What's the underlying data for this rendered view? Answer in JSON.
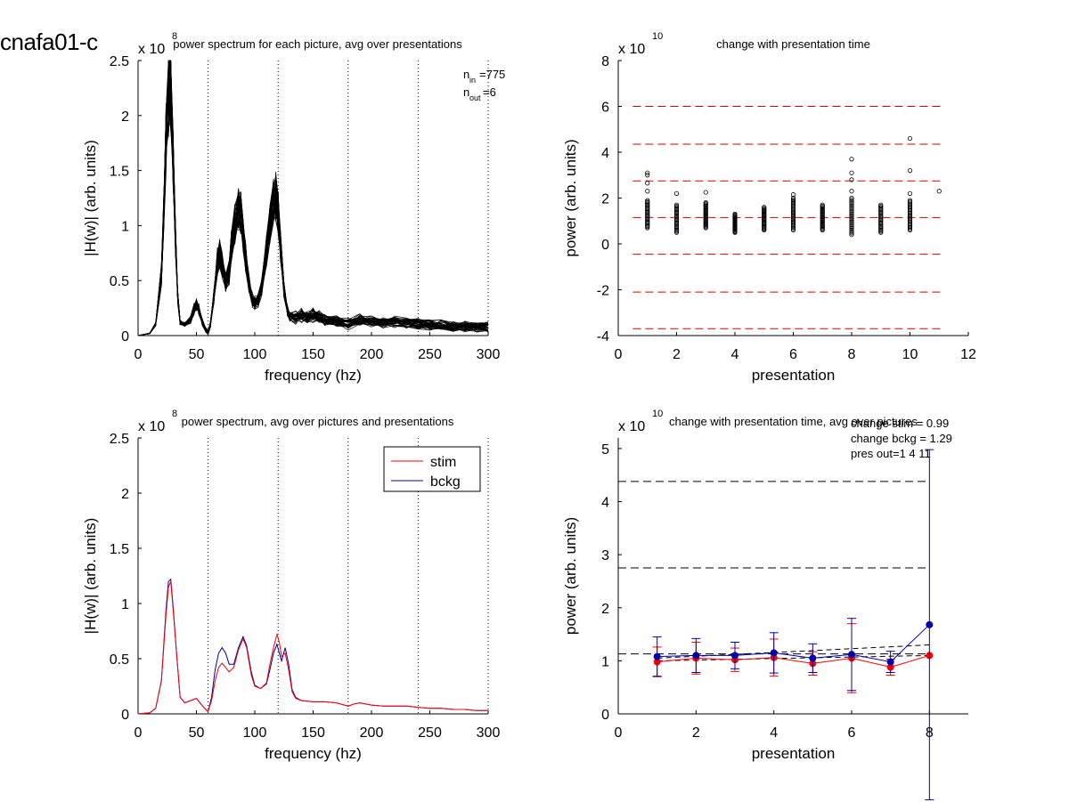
{
  "figure_label": "cnafa01-c",
  "colors": {
    "stim": "#ff0000",
    "bckg": "#0000aa",
    "curves": "#000000",
    "threshold": "#d00000"
  },
  "chart_data": [
    {
      "id": "p1",
      "type": "line",
      "title": "power spectrum for each picture, avg over presentations",
      "xlabel": "frequency (hz)",
      "ylabel": "|H(w)| (arb. units)",
      "exponent": "x 10",
      "exponent_power": "8",
      "xlim": [
        0,
        300
      ],
      "ylim": [
        0,
        2.5
      ],
      "xticks": [
        0,
        50,
        100,
        150,
        200,
        250,
        300
      ],
      "yticks": [
        0,
        0.5,
        1,
        1.5,
        2,
        2.5
      ],
      "vlines": [
        60,
        120,
        180,
        240,
        300
      ],
      "annotations": [
        {
          "base": "n",
          "sub": "in",
          "text": "=775"
        },
        {
          "base": "n",
          "sub": "out",
          "text": "=6"
        }
      ],
      "curve_count": 40,
      "template_curve": {
        "x": [
          0,
          5,
          10,
          15,
          20,
          22,
          24,
          26,
          27,
          28,
          30,
          32,
          34,
          36,
          40,
          45,
          48,
          50,
          52,
          55,
          58,
          60,
          62,
          65,
          68,
          70,
          72,
          75,
          78,
          80,
          83,
          86,
          88,
          90,
          92,
          95,
          98,
          100,
          103,
          106,
          110,
          113,
          116,
          118,
          120,
          122,
          125,
          128,
          130,
          135,
          140,
          145,
          150,
          155,
          160,
          170,
          180,
          190,
          200,
          210,
          220,
          230,
          240,
          250,
          260,
          270,
          280,
          290,
          300
        ],
        "y": [
          0,
          0.01,
          0.02,
          0.1,
          0.55,
          1.1,
          1.8,
          2.2,
          2.35,
          2.25,
          1.6,
          0.9,
          0.35,
          0.12,
          0.1,
          0.12,
          0.22,
          0.27,
          0.22,
          0.1,
          0.03,
          0.01,
          0.08,
          0.35,
          0.65,
          0.72,
          0.62,
          0.48,
          0.55,
          0.8,
          1.0,
          1.12,
          1.1,
          0.9,
          0.7,
          0.45,
          0.3,
          0.28,
          0.3,
          0.42,
          0.75,
          1.0,
          1.2,
          1.25,
          1.1,
          0.8,
          0.4,
          0.2,
          0.15,
          0.12,
          0.14,
          0.13,
          0.14,
          0.12,
          0.1,
          0.09,
          0.06,
          0.1,
          0.09,
          0.07,
          0.08,
          0.07,
          0.06,
          0.05,
          0.05,
          0.04,
          0.04,
          0.03,
          0.03
        ]
      }
    },
    {
      "id": "p2",
      "type": "scatter",
      "title": "change with presentation time",
      "xlabel": "presentation",
      "ylabel": "power (arb. units)",
      "exponent": "x 10",
      "exponent_power": "10",
      "xlim": [
        0,
        12
      ],
      "ylim": [
        -4,
        8
      ],
      "xticks": [
        0,
        2,
        4,
        6,
        8,
        10,
        12
      ],
      "yticks": [
        -4,
        -2,
        0,
        2,
        4,
        6,
        8
      ],
      "hlines": [
        6.0,
        4.35,
        2.75,
        1.15,
        -0.45,
        -2.1,
        -3.7
      ],
      "columns": [
        {
          "x": 1,
          "min": 0.7,
          "max": 1.9,
          "outliers": [
            2.3,
            2.65,
            3.0,
            3.1
          ]
        },
        {
          "x": 2,
          "min": 0.5,
          "max": 1.7,
          "outliers": [
            2.2
          ]
        },
        {
          "x": 3,
          "min": 0.7,
          "max": 1.8,
          "outliers": [
            2.25
          ]
        },
        {
          "x": 4,
          "min": 0.5,
          "max": 1.3,
          "outliers": []
        },
        {
          "x": 5,
          "min": 0.6,
          "max": 1.6,
          "outliers": []
        },
        {
          "x": 6,
          "min": 0.6,
          "max": 2.0,
          "outliers": [
            2.15
          ]
        },
        {
          "x": 7,
          "min": 0.6,
          "max": 1.7,
          "outliers": []
        },
        {
          "x": 8,
          "min": 0.4,
          "max": 2.0,
          "outliers": [
            2.3,
            2.8,
            3.1,
            3.7
          ]
        },
        {
          "x": 9,
          "min": 0.5,
          "max": 1.7,
          "outliers": []
        },
        {
          "x": 10,
          "min": 0.6,
          "max": 1.9,
          "outliers": [
            2.2,
            3.2,
            4.6
          ]
        },
        {
          "x": 11,
          "min": 2.3,
          "max": 2.3,
          "outliers": []
        }
      ]
    },
    {
      "id": "p3",
      "type": "line",
      "title": "power spectrum, avg over pictures and presentations",
      "xlabel": "frequency (hz)",
      "ylabel": "|H(w)| (arb. units)",
      "exponent": "x 10",
      "exponent_power": "8",
      "xlim": [
        0,
        300
      ],
      "ylim": [
        0,
        2.5
      ],
      "xticks": [
        0,
        50,
        100,
        150,
        200,
        250,
        300
      ],
      "yticks": [
        0,
        0.5,
        1,
        1.5,
        2,
        2.5
      ],
      "vlines": [
        60,
        120,
        180,
        240,
        300
      ],
      "legend": {
        "placement": "top-right",
        "entries": [
          "stim",
          "bckg"
        ]
      },
      "series": [
        {
          "name": "stim",
          "x": [
            0,
            10,
            15,
            20,
            24,
            26,
            28,
            30,
            33,
            36,
            40,
            45,
            50,
            53,
            57,
            60,
            63,
            66,
            69,
            72,
            75,
            78,
            82,
            86,
            90,
            93,
            97,
            100,
            105,
            110,
            113,
            116,
            119,
            121,
            123,
            126,
            129,
            132,
            135,
            140,
            150,
            160,
            170,
            180,
            185,
            190,
            200,
            210,
            220,
            230,
            240,
            250,
            260,
            270,
            280,
            290,
            300
          ],
          "y": [
            0,
            0.01,
            0.05,
            0.3,
            0.9,
            1.15,
            1.2,
            0.95,
            0.55,
            0.15,
            0.1,
            0.12,
            0.14,
            0.1,
            0.05,
            0.02,
            0.12,
            0.3,
            0.42,
            0.46,
            0.42,
            0.38,
            0.42,
            0.58,
            0.68,
            0.6,
            0.35,
            0.25,
            0.23,
            0.28,
            0.45,
            0.6,
            0.72,
            0.65,
            0.52,
            0.55,
            0.4,
            0.2,
            0.14,
            0.12,
            0.11,
            0.11,
            0.1,
            0.07,
            0.09,
            0.1,
            0.08,
            0.07,
            0.07,
            0.07,
            0.06,
            0.05,
            0.05,
            0.04,
            0.04,
            0.03,
            0.03
          ]
        },
        {
          "name": "bckg",
          "x": [
            0,
            10,
            15,
            20,
            24,
            26,
            28,
            30,
            33,
            36,
            40,
            45,
            50,
            53,
            57,
            60,
            63,
            66,
            69,
            72,
            75,
            78,
            82,
            86,
            90,
            93,
            97,
            100,
            105,
            110,
            113,
            116,
            119,
            121,
            123,
            126,
            129,
            132,
            135,
            140,
            150,
            160,
            170,
            180,
            185,
            190,
            200,
            210,
            220,
            230,
            240,
            250,
            260,
            270,
            280,
            290,
            300
          ],
          "y": [
            0,
            0.01,
            0.05,
            0.3,
            0.95,
            1.2,
            1.22,
            0.98,
            0.55,
            0.15,
            0.1,
            0.12,
            0.14,
            0.1,
            0.05,
            0.02,
            0.15,
            0.4,
            0.55,
            0.6,
            0.55,
            0.45,
            0.45,
            0.6,
            0.7,
            0.62,
            0.38,
            0.26,
            0.23,
            0.27,
            0.4,
            0.55,
            0.63,
            0.55,
            0.48,
            0.6,
            0.45,
            0.22,
            0.15,
            0.12,
            0.11,
            0.11,
            0.1,
            0.07,
            0.09,
            0.1,
            0.08,
            0.07,
            0.07,
            0.07,
            0.06,
            0.05,
            0.05,
            0.04,
            0.04,
            0.03,
            0.03
          ]
        }
      ]
    },
    {
      "id": "p4",
      "type": "line",
      "title": "change with presentation time, avg over pictures",
      "xlabel": "presentation",
      "ylabel": "power (arb. units)",
      "exponent": "x 10",
      "exponent_power": "10",
      "xlim": [
        0,
        9
      ],
      "ylim": [
        0,
        5.2
      ],
      "xticks": [
        0,
        2,
        4,
        6,
        8
      ],
      "yticks": [
        0,
        1,
        2,
        3,
        4,
        5
      ],
      "hlines": [
        4.38,
        2.75,
        1.13
      ],
      "annotations": [
        "change stim = 0.99",
        "change bckg = 1.29",
        "pres out=1 4 11"
      ],
      "series": [
        {
          "name": "stim",
          "x": [
            1,
            2,
            3,
            4,
            5,
            6,
            7,
            8
          ],
          "y": [
            0.98,
            1.05,
            1.02,
            1.06,
            0.95,
            1.05,
            0.88,
            1.1
          ],
          "err": [
            0.28,
            0.3,
            0.22,
            0.35,
            0.22,
            0.65,
            0.15,
            0.0
          ],
          "trend": [
            1.0,
            1.1
          ]
        },
        {
          "name": "bckg",
          "x": [
            1,
            2,
            3,
            4,
            5,
            6,
            7,
            8
          ],
          "y": [
            1.08,
            1.1,
            1.1,
            1.15,
            1.05,
            1.12,
            0.98,
            1.68
          ],
          "err": [
            0.37,
            0.32,
            0.25,
            0.38,
            0.27,
            0.68,
            0.2,
            3.3
          ],
          "trend": [
            1.05,
            1.3
          ]
        }
      ]
    }
  ]
}
